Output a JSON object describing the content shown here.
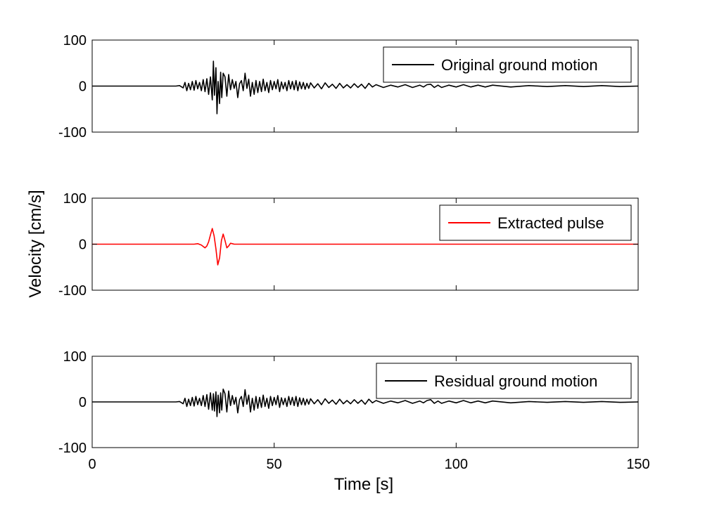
{
  "figure": {
    "ylabel": "Velocity [cm/s]",
    "xlabel": "Time [s]"
  },
  "chart_data": [
    {
      "type": "line",
      "panel": "top",
      "xlim": [
        0,
        150
      ],
      "ylim": [
        -100,
        100
      ],
      "xticks": [
        0,
        50,
        100,
        150
      ],
      "yticks": [
        -100,
        0,
        100
      ],
      "show_x_tick_labels": false,
      "grid": false,
      "legend_position": "top-right",
      "series": [
        {
          "name": "Original ground motion",
          "color": "#000000",
          "x": [
            0,
            23,
            24,
            25,
            25.5,
            26,
            26.5,
            27,
            27.5,
            28,
            28.5,
            29,
            29.5,
            30,
            30.5,
            31,
            31.5,
            32,
            32.5,
            33,
            33.3,
            33.6,
            34,
            34.3,
            34.6,
            35,
            35.3,
            35.6,
            36,
            36.5,
            37,
            37.5,
            38,
            38.5,
            39,
            39.5,
            40,
            40.5,
            41,
            41.5,
            42,
            42.5,
            43,
            43.5,
            44,
            44.5,
            45,
            45.5,
            46,
            46.5,
            47,
            47.5,
            48,
            48.5,
            49,
            49.5,
            50,
            50.5,
            51,
            51.5,
            52,
            52.5,
            53,
            53.5,
            54,
            54.5,
            55,
            55.5,
            56,
            56.5,
            57,
            57.5,
            58,
            58.5,
            59,
            59.5,
            60,
            61,
            62,
            63,
            64,
            65,
            66,
            67,
            68,
            69,
            70,
            71,
            72,
            73,
            74,
            75,
            76,
            77,
            78,
            80,
            82,
            84,
            86,
            88,
            90,
            91,
            92,
            93,
            94,
            95,
            96,
            98,
            100,
            102,
            104,
            106,
            108,
            110,
            115,
            120,
            125,
            130,
            135,
            140,
            145,
            150
          ],
          "y": [
            0,
            0,
            1,
            -4,
            8,
            -10,
            6,
            -8,
            10,
            -9,
            12,
            -6,
            8,
            -10,
            14,
            -12,
            16,
            -18,
            20,
            -30,
            54,
            -20,
            40,
            -60,
            10,
            -38,
            30,
            -25,
            28,
            20,
            -22,
            25,
            -8,
            14,
            -5,
            10,
            -25,
            5,
            12,
            -10,
            28,
            -5,
            15,
            -22,
            8,
            -18,
            12,
            -14,
            10,
            -12,
            15,
            -10,
            8,
            -14,
            12,
            -8,
            10,
            -6,
            14,
            -12,
            9,
            -6,
            8,
            -10,
            12,
            -6,
            10,
            -8,
            12,
            -10,
            9,
            -6,
            8,
            -7,
            6,
            -5,
            7,
            -4,
            5,
            -6,
            7,
            -3,
            4,
            -5,
            6,
            -4,
            3,
            -4,
            5,
            -3,
            4,
            -5,
            6,
            -2,
            3,
            -3,
            2,
            -2,
            3,
            -3,
            2,
            -2,
            3,
            4,
            -3,
            2,
            -3,
            2,
            -2,
            3,
            -2,
            2,
            -2,
            2,
            -2,
            1,
            -1,
            1,
            -1,
            1,
            -1,
            0
          ]
        }
      ]
    },
    {
      "type": "line",
      "panel": "middle",
      "xlim": [
        0,
        150
      ],
      "ylim": [
        -100,
        100
      ],
      "xticks": [
        0,
        50,
        100,
        150
      ],
      "yticks": [
        -100,
        0,
        100
      ],
      "show_x_tick_labels": false,
      "grid": false,
      "legend_position": "top-right",
      "series": [
        {
          "name": "Extracted pulse",
          "color": "#ff0000",
          "x": [
            0,
            28,
            29,
            30,
            30.5,
            31,
            31.5,
            32,
            32.5,
            33,
            33.5,
            34,
            34.5,
            35,
            35.5,
            36,
            36.5,
            37,
            37.5,
            38,
            38.5,
            39,
            40,
            150
          ],
          "y": [
            0,
            0,
            1,
            -2,
            -5,
            -8,
            -4,
            5,
            20,
            34,
            18,
            -10,
            -45,
            -30,
            8,
            22,
            8,
            -8,
            -4,
            2,
            1,
            0,
            0,
            0
          ]
        }
      ]
    },
    {
      "type": "line",
      "panel": "bottom",
      "xlim": [
        0,
        150
      ],
      "ylim": [
        -100,
        100
      ],
      "xticks": [
        0,
        50,
        100,
        150
      ],
      "yticks": [
        -100,
        0,
        100
      ],
      "show_x_tick_labels": true,
      "grid": false,
      "legend_position": "top-right",
      "series": [
        {
          "name": "Residual ground motion",
          "color": "#000000",
          "x": [
            0,
            23,
            24,
            25,
            25.5,
            26,
            26.5,
            27,
            27.5,
            28,
            28.5,
            29,
            29.5,
            30,
            30.5,
            31,
            31.5,
            32,
            32.5,
            33,
            33.3,
            33.6,
            34,
            34.3,
            34.6,
            35,
            35.3,
            35.6,
            36,
            36.5,
            37,
            37.5,
            38,
            38.5,
            39,
            39.5,
            40,
            40.5,
            41,
            41.5,
            42,
            42.5,
            43,
            43.5,
            44,
            44.5,
            45,
            45.5,
            46,
            46.5,
            47,
            47.5,
            48,
            48.5,
            49,
            49.5,
            50,
            50.5,
            51,
            51.5,
            52,
            52.5,
            53,
            53.5,
            54,
            54.5,
            55,
            55.5,
            56,
            56.5,
            57,
            57.5,
            58,
            58.5,
            59,
            59.5,
            60,
            61,
            62,
            63,
            64,
            65,
            66,
            67,
            68,
            69,
            70,
            71,
            72,
            73,
            74,
            75,
            76,
            77,
            78,
            80,
            82,
            84,
            86,
            88,
            90,
            91,
            92,
            93,
            94,
            95,
            96,
            98,
            100,
            102,
            104,
            106,
            108,
            110,
            115,
            120,
            125,
            130,
            135,
            140,
            145,
            150
          ],
          "y": [
            0,
            0,
            1,
            -4,
            8,
            -10,
            6,
            -8,
            10,
            -9,
            12,
            -6,
            8,
            -8,
            14,
            -10,
            16,
            -16,
            20,
            -18,
            18,
            -20,
            22,
            -32,
            15,
            -24,
            20,
            -18,
            28,
            18,
            -22,
            24,
            -8,
            14,
            -5,
            10,
            -24,
            5,
            12,
            -10,
            27,
            -5,
            15,
            -22,
            8,
            -18,
            12,
            -14,
            10,
            -12,
            15,
            -10,
            8,
            -14,
            12,
            -8,
            10,
            -6,
            14,
            -12,
            9,
            -6,
            8,
            -10,
            12,
            -6,
            10,
            -8,
            12,
            -10,
            9,
            -6,
            8,
            -7,
            6,
            -5,
            7,
            -4,
            5,
            -6,
            7,
            -3,
            4,
            -5,
            6,
            -4,
            3,
            -4,
            5,
            -3,
            4,
            -5,
            6,
            -2,
            3,
            -3,
            2,
            -2,
            3,
            -3,
            2,
            -2,
            3,
            5,
            -3,
            2,
            -3,
            2,
            -2,
            3,
            -2,
            2,
            -2,
            2,
            -2,
            1,
            -1,
            1,
            -1,
            1,
            -1,
            0
          ]
        }
      ]
    }
  ]
}
